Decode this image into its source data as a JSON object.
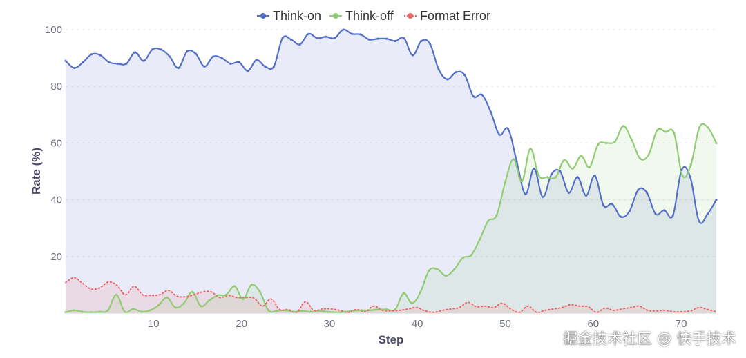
{
  "chart_data": {
    "type": "line",
    "xlabel": "Step",
    "ylabel": "Rate (%)",
    "xlim": [
      0,
      74
    ],
    "ylim": [
      0,
      100
    ],
    "x_ticks": [
      10,
      20,
      30,
      40,
      50,
      60,
      70
    ],
    "y_ticks": [
      20,
      40,
      60,
      80,
      100
    ],
    "grid": "horizontal dashed",
    "legend_position": "top-center",
    "series": [
      {
        "name": "Think-on",
        "color": "#5470c6",
        "line_style": "solid",
        "area_fill": true,
        "values": [
          89,
          86.5,
          88.5,
          91.3,
          91,
          88.5,
          88,
          88,
          92,
          89,
          93,
          93,
          90.5,
          86.5,
          92.3,
          91.5,
          87,
          90.5,
          90,
          88,
          88.5,
          85.5,
          89.3,
          87,
          87,
          97,
          96.5,
          94.8,
          98.5,
          97,
          97.5,
          97,
          100,
          98.5,
          98.3,
          96.5,
          96.8,
          96.8,
          96,
          97,
          91,
          96,
          95,
          86,
          82.5,
          85,
          84,
          76.5,
          77,
          71,
          63,
          65,
          53.5,
          42,
          51,
          41,
          49,
          50,
          42.5,
          48,
          41.5,
          48.5,
          38,
          38.5,
          34,
          36,
          43.5,
          42.5,
          35,
          36.3,
          34.5,
          50.5,
          48,
          32.5,
          35,
          40
        ]
      },
      {
        "name": "Think-off",
        "color": "#91cc75",
        "line_style": "solid",
        "area_fill": true,
        "values": [
          0.3,
          1,
          0.5,
          0.3,
          0.5,
          1,
          6.5,
          0.5,
          1.5,
          0.5,
          1,
          2.8,
          5.5,
          2,
          3.5,
          7.5,
          2.5,
          4.5,
          6.3,
          6.5,
          9.5,
          5,
          10,
          7.5,
          1,
          0.8,
          1,
          0.5,
          0.8,
          0.5,
          0.8,
          0.5,
          0.3,
          0.5,
          0.8,
          1,
          1,
          1.3,
          1.3,
          1.3,
          7,
          3.5,
          7.5,
          15,
          15.5,
          13.2,
          15.5,
          19.5,
          20.5,
          26,
          32.5,
          34.5,
          46,
          54.3,
          46.5,
          58,
          48.5,
          48,
          48,
          54,
          51,
          55.5,
          51.5,
          59.5,
          60,
          60.5,
          66,
          61,
          54.5,
          56,
          64.5,
          64,
          63.5,
          48.5,
          52.5,
          65.5,
          65.5,
          60
        ]
      },
      {
        "name": "Format Error",
        "color": "#ee6666",
        "line_style": "dotted",
        "area_fill": true,
        "values": [
          10.8,
          12.5,
          10.5,
          8.5,
          9,
          11,
          9.8,
          6.5,
          9.5,
          6.5,
          6.3,
          6.5,
          8,
          6,
          5.8,
          6.5,
          7.5,
          7.5,
          5.5,
          6.3,
          5.5,
          5.5,
          5.3,
          2.5,
          5,
          1.3,
          1.3,
          0.3,
          4,
          1,
          1.5,
          1.5,
          1,
          0.3,
          1.3,
          0.5,
          2.5,
          1,
          0.8,
          1,
          1.5,
          2,
          0.8,
          0.3,
          1,
          1.5,
          2,
          3.8,
          2.3,
          2.5,
          2,
          3.5,
          1.5,
          0.3,
          2.5,
          0.3,
          1,
          1.5,
          2,
          3,
          2.5,
          2.3,
          0.3,
          1.8,
          1,
          1.5,
          2,
          2.5,
          1,
          0.8,
          1,
          0.5,
          0.5,
          0.8,
          2,
          1.3,
          0.5
        ]
      }
    ]
  },
  "watermark": "掘金技术社区 @ 快手技术"
}
